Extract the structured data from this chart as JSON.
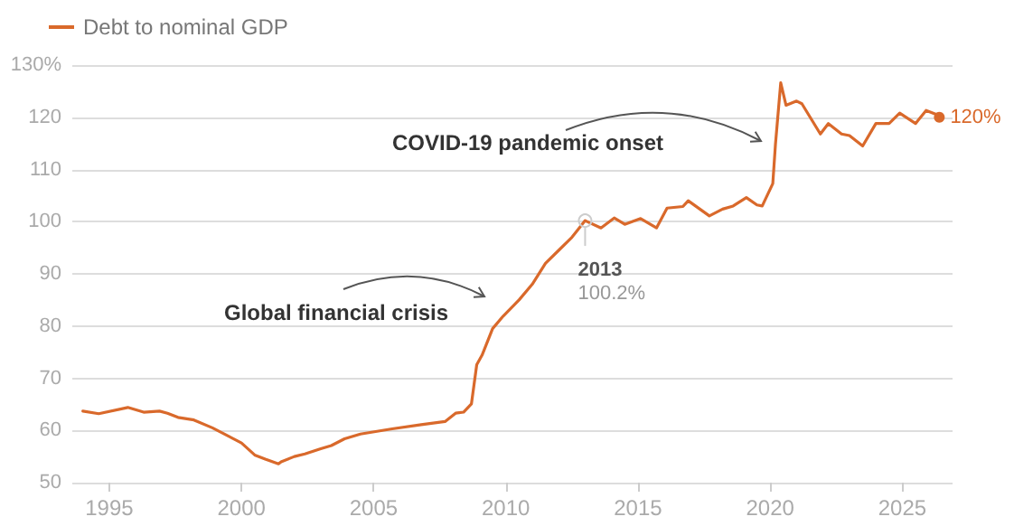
{
  "chart_data": {
    "type": "line",
    "x": [
      1994.0,
      1994.6,
      1995.7,
      1996.3,
      1996.9,
      1997.2,
      1997.6,
      1998.2,
      1998.9,
      2000.0,
      2000.5,
      2000.9,
      2001.4,
      2001.5,
      2002.0,
      2002.4,
      2003.0,
      2003.4,
      2003.9,
      2004.5,
      2005.7,
      2006.8,
      2007.7,
      2008.1,
      2008.4,
      2008.7,
      2008.9,
      2009.1,
      2009.5,
      2009.9,
      2010.5,
      2011.0,
      2011.5,
      2012.0,
      2012.5,
      2013.0,
      2013.6,
      2014.1,
      2014.5,
      2015.1,
      2015.7,
      2016.1,
      2016.7,
      2016.9,
      2017.7,
      2018.2,
      2018.6,
      2019.1,
      2019.5,
      2019.7,
      2020.1,
      2020.2,
      2020.4,
      2020.6,
      2021.0,
      2021.2,
      2021.9,
      2022.2,
      2022.7,
      2023.0,
      2023.5,
      2024.0,
      2024.5,
      2024.9,
      2025.5,
      2025.9,
      2026.3,
      2026.4
    ],
    "series": [
      {
        "name": "Debt to nominal GDP",
        "color": "#d9692b",
        "values": [
          63.7,
          63.2,
          64.4,
          63.5,
          63.7,
          63.3,
          62.5,
          62.0,
          60.5,
          57.6,
          55.3,
          54.5,
          53.6,
          54.0,
          55.0,
          55.5,
          56.5,
          57.1,
          58.4,
          59.3,
          60.3,
          61.1,
          61.7,
          63.3,
          63.5,
          65.1,
          72.6,
          74.4,
          79.5,
          81.9,
          85.0,
          88.0,
          92.0,
          94.5,
          97.0,
          100.2,
          98.8,
          100.7,
          99.5,
          100.6,
          98.8,
          102.6,
          102.9,
          104.0,
          101.1,
          102.4,
          103.0,
          104.6,
          103.2,
          103.0,
          107.3,
          114.8,
          126.6,
          122.3,
          123.1,
          122.6,
          116.8,
          118.8,
          116.8,
          116.5,
          114.5,
          118.8,
          118.8,
          120.8,
          118.8,
          121.3,
          120.5,
          120.0
        ],
        "value_labels": [
          null,
          null,
          null,
          null,
          null,
          null,
          null,
          null,
          null,
          null,
          null,
          null,
          null,
          null,
          null,
          null,
          null,
          null,
          null,
          null,
          null,
          null,
          null,
          null,
          null,
          null,
          null,
          null,
          null,
          null,
          null,
          null,
          null,
          null,
          null,
          null,
          null,
          null,
          null,
          null,
          null,
          null,
          null,
          null,
          null,
          null,
          null,
          null,
          null,
          null,
          null,
          null,
          null,
          null,
          null,
          null,
          null,
          null,
          null,
          null,
          null,
          null,
          null,
          null,
          null,
          null,
          null,
          "120%"
        ]
      }
    ],
    "xlim": [
      1993.6,
      2026.9
    ],
    "xticks": [
      1995,
      2000,
      2005,
      2010,
      2015,
      2020,
      2025
    ],
    "ylim": [
      50,
      130
    ],
    "yticks": [
      50,
      60,
      70,
      80,
      90,
      100,
      110,
      120,
      {
        "value": 130,
        "label": "130%"
      }
    ],
    "grid": "y",
    "legend": "top left",
    "marker": "none",
    "annotations": [
      "Global financial crisis",
      "COVID-19 pandemic onset",
      {
        "text": "2013",
        "x": 2013,
        "y": 100.2
      },
      "100.2%"
    ]
  }
}
